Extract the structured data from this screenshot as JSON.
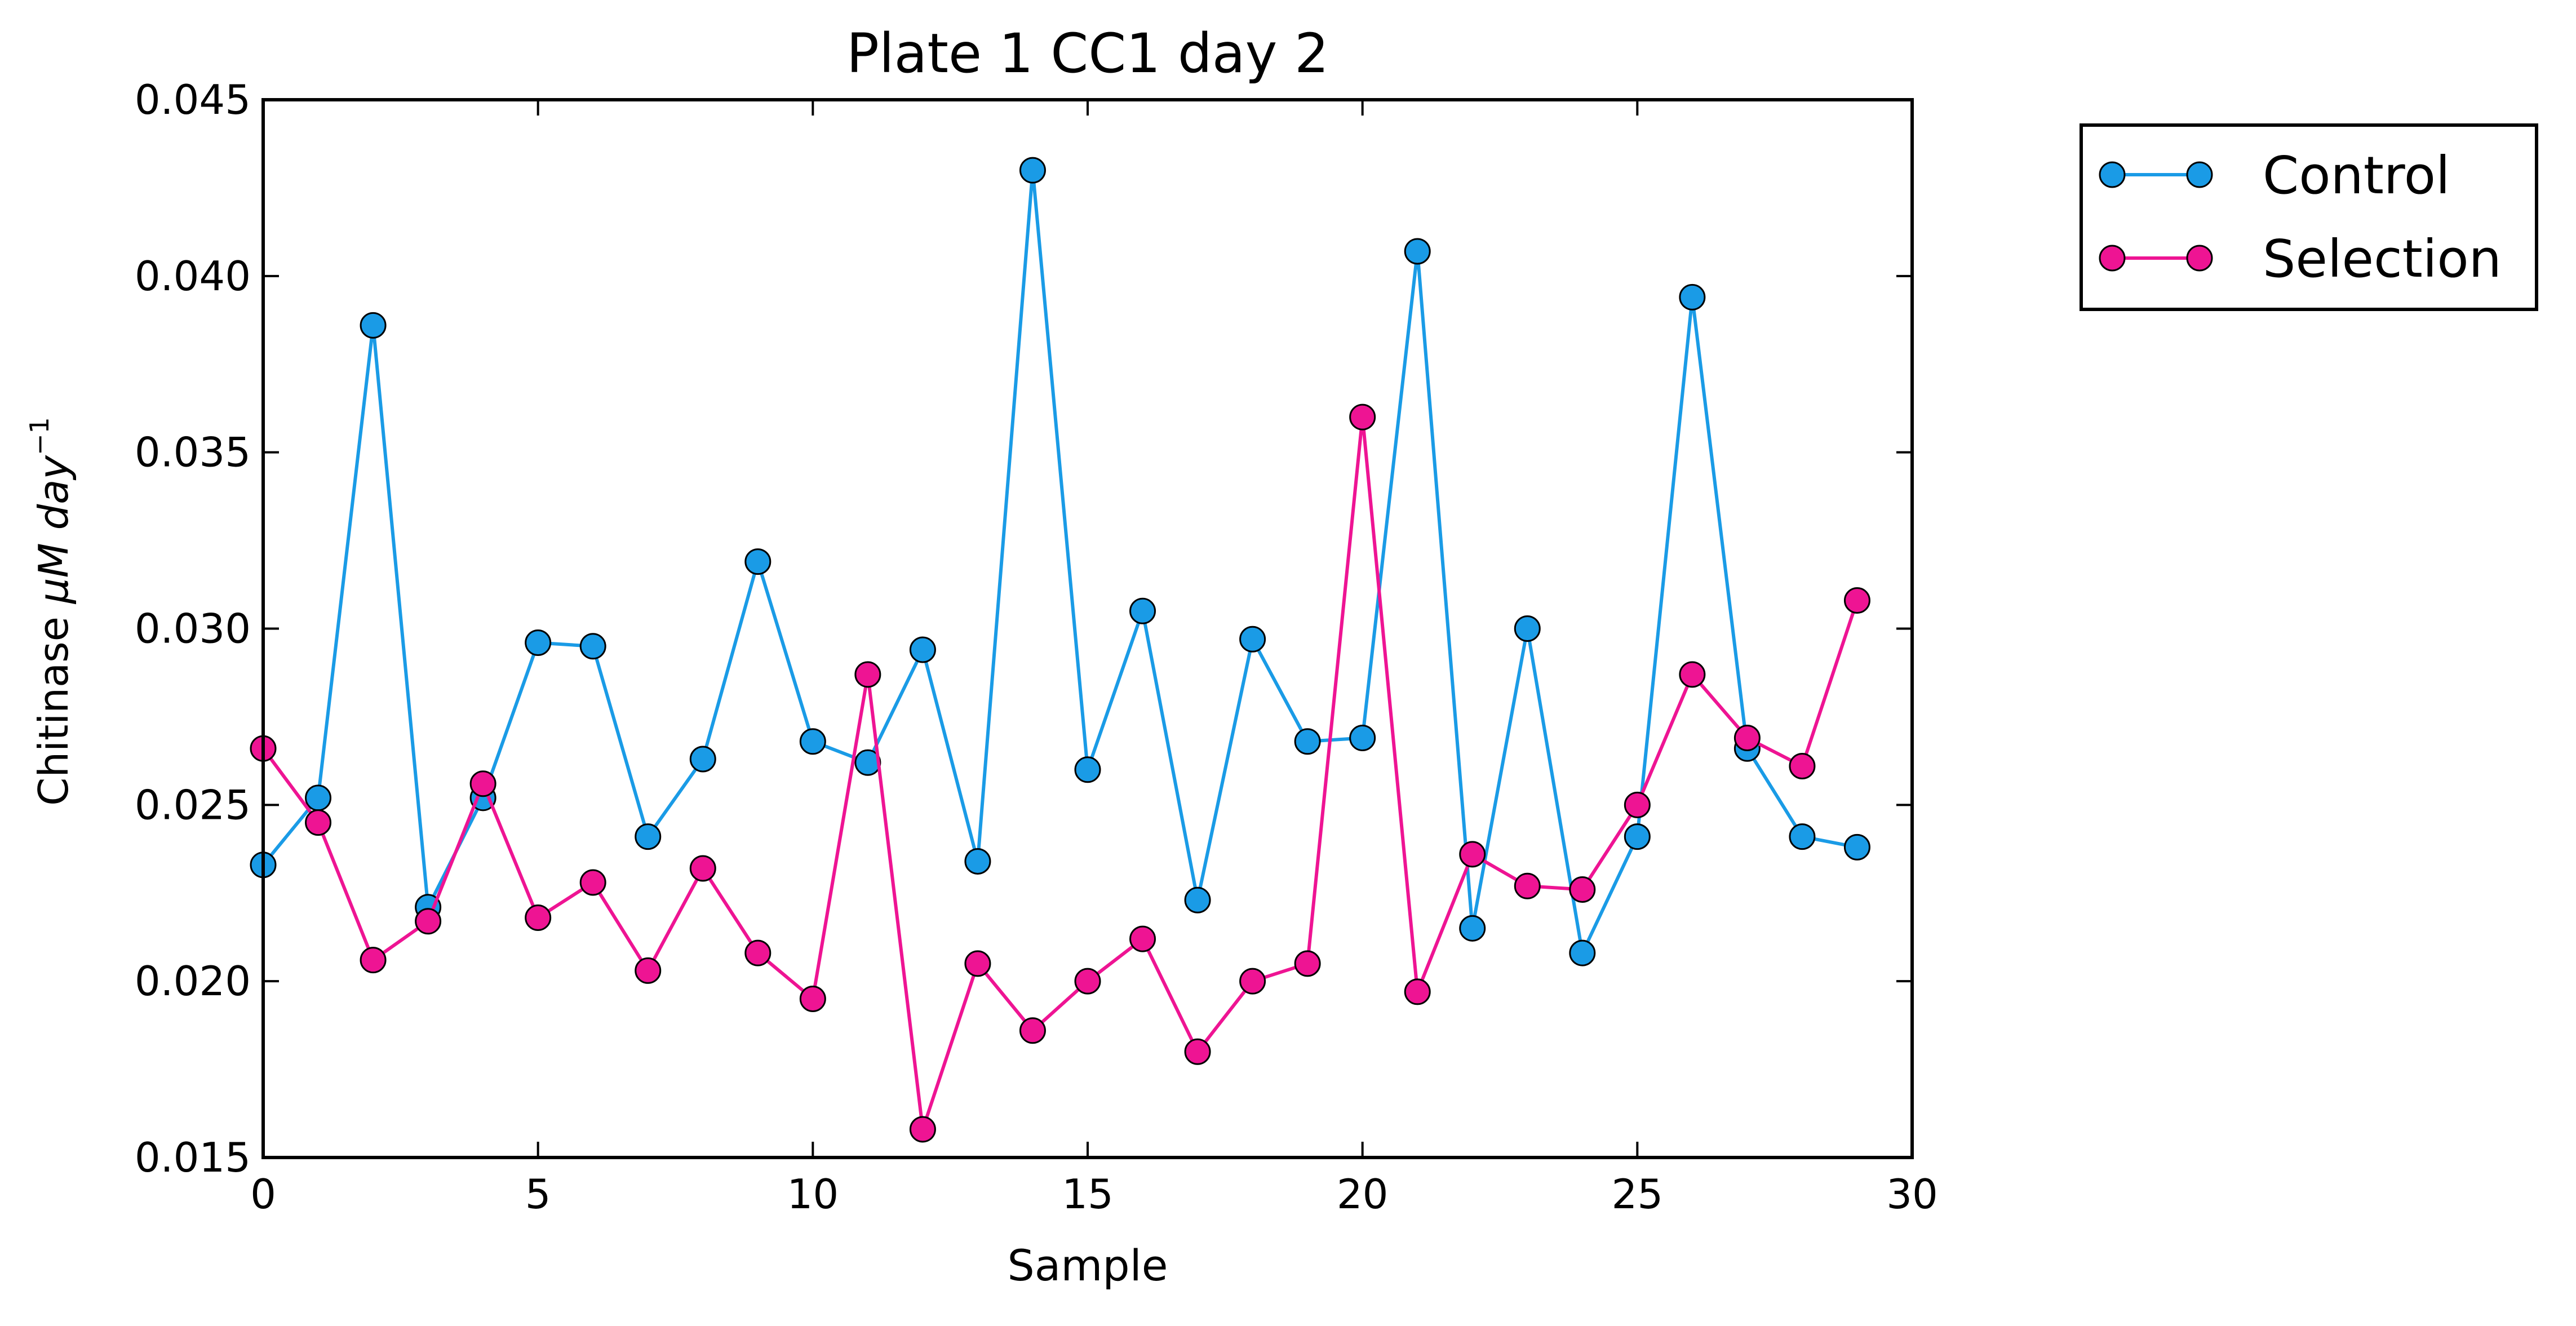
{
  "chart_data": {
    "type": "line",
    "title": "Plate 1 CC1 day 2",
    "xlabel": "Sample",
    "ylabel_prefix": "Chitinase ",
    "ylabel_math": "μM day",
    "ylabel_superscript": "−1",
    "xlim": [
      0,
      30
    ],
    "ylim": [
      0.015,
      0.045
    ],
    "xticks": [
      0,
      5,
      10,
      15,
      20,
      25,
      30
    ],
    "xtick_labels": [
      "0",
      "5",
      "10",
      "15",
      "20",
      "25",
      "30"
    ],
    "yticks": [
      0.015,
      0.02,
      0.025,
      0.03,
      0.035,
      0.04,
      0.045
    ],
    "ytick_labels": [
      "0.015",
      "0.020",
      "0.025",
      "0.030",
      "0.035",
      "0.040",
      "0.045"
    ],
    "grid": false,
    "legend_position": "outside-top-right",
    "x": [
      0,
      1,
      2,
      3,
      4,
      5,
      6,
      7,
      8,
      9,
      10,
      11,
      12,
      13,
      14,
      15,
      16,
      17,
      18,
      19,
      20,
      21,
      22,
      23,
      24,
      25,
      26,
      27,
      28,
      29
    ],
    "series": [
      {
        "name": "Control",
        "color": "#1a9be6",
        "marker": "circle",
        "values": [
          0.0233,
          0.0252,
          0.0386,
          0.0221,
          0.0252,
          0.0296,
          0.0295,
          0.0241,
          0.0263,
          0.0319,
          0.0268,
          0.0262,
          0.0294,
          0.0234,
          0.043,
          0.026,
          0.0305,
          0.0223,
          0.0297,
          0.0268,
          0.0269,
          0.0407,
          0.0215,
          0.03,
          0.0208,
          0.0241,
          0.0394,
          0.0266,
          0.0241,
          0.0238
        ]
      },
      {
        "name": "Selection",
        "color": "#ee1493",
        "marker": "circle",
        "values": [
          0.0266,
          0.0245,
          0.0206,
          0.0217,
          0.0256,
          0.0218,
          0.0228,
          0.0203,
          0.0232,
          0.0208,
          0.0195,
          0.0287,
          0.0158,
          0.0205,
          0.0186,
          0.02,
          0.0212,
          0.018,
          0.02,
          0.0205,
          0.036,
          0.0197,
          0.0236,
          0.0227,
          0.0226,
          0.025,
          0.0287,
          0.0269,
          0.0261,
          0.0308
        ]
      }
    ]
  }
}
